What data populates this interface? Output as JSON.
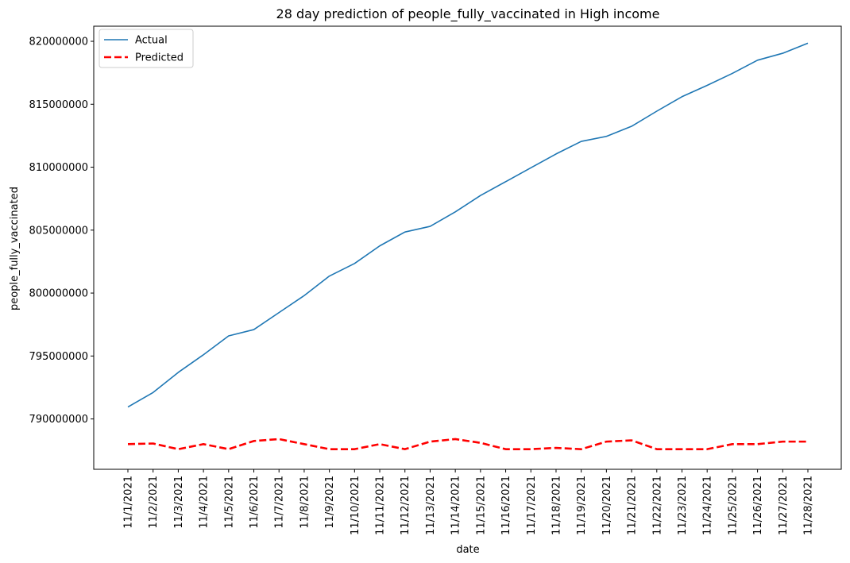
{
  "chart_data": {
    "type": "line",
    "title": "28 day prediction of people_fully_vaccinated in High income",
    "xlabel": "date",
    "ylabel": "people_fully_vaccinated",
    "categories": [
      "11/1/2021",
      "11/2/2021",
      "11/3/2021",
      "11/4/2021",
      "11/5/2021",
      "11/6/2021",
      "11/7/2021",
      "11/8/2021",
      "11/9/2021",
      "11/10/2021",
      "11/11/2021",
      "11/12/2021",
      "11/13/2021",
      "11/14/2021",
      "11/15/2021",
      "11/16/2021",
      "11/17/2021",
      "11/18/2021",
      "11/19/2021",
      "11/20/2021",
      "11/21/2021",
      "11/22/2021",
      "11/23/2021",
      "11/24/2021",
      "11/25/2021",
      "11/26/2021",
      "11/27/2021",
      "11/28/2021"
    ],
    "ylim": [
      786000000,
      821200000
    ],
    "yticks": [
      790000000,
      795000000,
      800000000,
      805000000,
      810000000,
      815000000,
      820000000
    ],
    "ytick_labels": [
      "790000000",
      "795000000",
      "800000000",
      "805000000",
      "810000000",
      "815000000",
      "820000000"
    ],
    "legend_position": "upper-left",
    "grid": false,
    "series": [
      {
        "name": "Actual",
        "color": "#1f77b4",
        "style": "solid",
        "values": [
          790950000,
          792100000,
          793700000,
          795100000,
          796600000,
          797100000,
          798450000,
          799800000,
          801350000,
          802350000,
          803750000,
          804850000,
          805300000,
          806450000,
          807750000,
          808850000,
          809950000,
          811050000,
          812050000,
          812450000,
          813250000,
          814450000,
          815600000,
          816500000,
          817450000,
          818500000,
          819050000,
          819850000
        ]
      },
      {
        "name": "Predicted",
        "color": "#ff0000",
        "style": "dashed",
        "values": [
          788000000,
          788050000,
          787600000,
          788000000,
          787600000,
          788250000,
          788400000,
          788000000,
          787600000,
          787600000,
          788000000,
          787600000,
          788200000,
          788400000,
          788100000,
          787600000,
          787600000,
          787700000,
          787600000,
          788200000,
          788300000,
          787600000,
          787600000,
          787600000,
          788000000,
          788000000,
          788200000,
          788200000
        ]
      }
    ]
  }
}
